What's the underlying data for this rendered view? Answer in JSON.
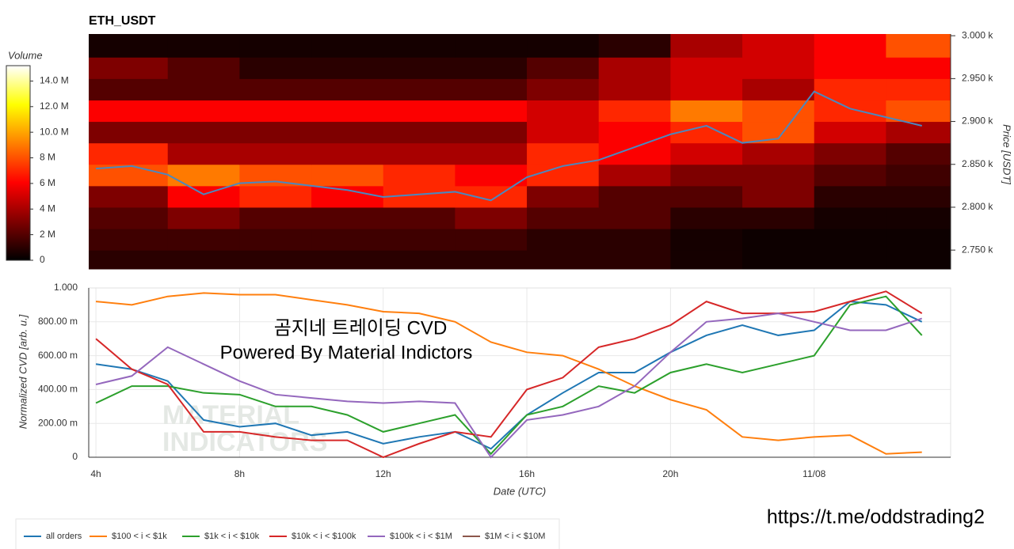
{
  "chart_data": [
    {
      "type": "heatmap",
      "title": "ETH_USDT",
      "colorbar_title": "Volume",
      "ylabel": "Price [USDT]",
      "xbins": [
        3.8,
        6,
        8,
        10,
        12,
        14,
        16,
        18,
        20,
        22,
        24,
        26,
        27.8
      ],
      "ybins": [
        2728,
        2750,
        2775,
        2800,
        2825,
        2850,
        2875,
        2900,
        2925,
        2950,
        2975,
        3002
      ],
      "z": [
        [
          1,
          1,
          1,
          1,
          1,
          1,
          1,
          1,
          0.5,
          0.3,
          0.3,
          0.3
        ],
        [
          1.5,
          1.5,
          1.5,
          1.5,
          1.5,
          1.5,
          1,
          1,
          0.5,
          0.3,
          0.3,
          0.3
        ],
        [
          2,
          3,
          2,
          2,
          2,
          3,
          2,
          2,
          1,
          1,
          0.5,
          0.5
        ],
        [
          3,
          6,
          7,
          6,
          7,
          7,
          3,
          2,
          2,
          3,
          1,
          1
        ],
        [
          8,
          9,
          8,
          8,
          7,
          6,
          7,
          4,
          3,
          3,
          2,
          1.5
        ],
        [
          7,
          4,
          4,
          4,
          4,
          4,
          7,
          6,
          5,
          4,
          3,
          2
        ],
        [
          3,
          3,
          3,
          3,
          3,
          3,
          5,
          6,
          7,
          8,
          5,
          4
        ],
        [
          6,
          6,
          6,
          6,
          6,
          6,
          5,
          7,
          9,
          8,
          7,
          8
        ],
        [
          2,
          2,
          2,
          2,
          2,
          2,
          3,
          4,
          5,
          4,
          7,
          7
        ],
        [
          3,
          2,
          1,
          1,
          1,
          1,
          2,
          4,
          5,
          5,
          6,
          6
        ],
        [
          0.5,
          0.5,
          0.5,
          0.5,
          0.5,
          0.5,
          0.5,
          1,
          4,
          5,
          6,
          8
        ]
      ],
      "zlim": [
        0,
        15.2
      ],
      "zticks": [
        0,
        {
          "value": 2,
          "label": "2 M"
        },
        {
          "value": 4,
          "label": "4 M"
        },
        {
          "value": 6,
          "label": "6 M"
        },
        {
          "value": 8,
          "label": "8 M"
        },
        {
          "value": 10,
          "label": "10.0 M"
        },
        {
          "value": 12,
          "label": "12.0 M"
        },
        {
          "value": 14,
          "label": "14.0 M"
        }
      ],
      "xlim": [
        3.8,
        27.8
      ],
      "ylim": [
        2728,
        3002
      ],
      "yticks": [
        {
          "value": 2750,
          "label": "2.750 k"
        },
        {
          "value": 2800,
          "label": "2.800 k"
        },
        {
          "value": 2850,
          "label": "2.850 k"
        },
        {
          "value": 2900,
          "label": "2.900 k"
        },
        {
          "value": 2950,
          "label": "2.950 k"
        },
        {
          "value": 3000,
          "label": "3.000 k"
        }
      ],
      "line": {
        "color": "#4a88c0",
        "x": [
          4,
          5,
          6,
          7,
          8,
          9,
          10,
          11,
          12,
          13,
          14,
          15,
          16,
          17,
          18,
          19,
          20,
          21,
          22,
          23,
          24,
          25,
          26,
          27
        ],
        "values": [
          2845,
          2848,
          2838,
          2815,
          2828,
          2830,
          2825,
          2820,
          2812,
          2815,
          2818,
          2808,
          2835,
          2848,
          2855,
          2870,
          2885,
          2895,
          2875,
          2880,
          2935,
          2915,
          2905,
          2895
        ]
      }
    },
    {
      "type": "line",
      "ylabel": "Normalized CVD [arb. u.]",
      "xlabel": "Date (UTC)",
      "annotations": [
        "곰지네 트레이딩 CVD",
        "Powered By Material Indictors",
        "https://t.me/oddstrading2"
      ],
      "watermark": [
        "MATERIAL",
        "INDICATORS"
      ],
      "xlim": [
        3.8,
        27.8
      ],
      "ylim": [
        0,
        1
      ],
      "xticks": [
        {
          "value": 4,
          "label": "4h"
        },
        {
          "value": 8,
          "label": "8h"
        },
        {
          "value": 12,
          "label": "12h"
        },
        {
          "value": 16,
          "label": "16h"
        },
        {
          "value": 20,
          "label": "20h"
        },
        {
          "value": 24,
          "label": "11/08"
        }
      ],
      "yticks": [
        0,
        {
          "value": 0.2,
          "label": "200.00 m"
        },
        {
          "value": 0.4,
          "label": "400.00 m"
        },
        {
          "value": 0.6,
          "label": "600.00 m"
        },
        {
          "value": 0.8,
          "label": "800.00 m"
        },
        {
          "value": 1,
          "label": "1.000"
        }
      ],
      "grid": true,
      "x": [
        4,
        5,
        6,
        7,
        8,
        9,
        10,
        11,
        12,
        13,
        14,
        15,
        16,
        17,
        18,
        19,
        20,
        21,
        22,
        23,
        24,
        25,
        26,
        27
      ],
      "series": [
        {
          "name": "all orders",
          "color": "#1f77b4",
          "values": [
            0.55,
            0.52,
            0.45,
            0.22,
            0.18,
            0.2,
            0.13,
            0.15,
            0.08,
            0.12,
            0.15,
            0.05,
            0.25,
            0.38,
            0.5,
            0.5,
            0.62,
            0.72,
            0.78,
            0.72,
            0.75,
            0.92,
            0.9,
            0.8
          ]
        },
        {
          "name": "$100 < i < $1k",
          "color": "#ff7f0e",
          "values": [
            0.92,
            0.9,
            0.95,
            0.97,
            0.96,
            0.96,
            0.93,
            0.9,
            0.86,
            0.85,
            0.8,
            0.68,
            0.62,
            0.6,
            0.52,
            0.42,
            0.34,
            0.28,
            0.12,
            0.1,
            0.12,
            0.13,
            0.02,
            0.03
          ]
        },
        {
          "name": "$1k < i < $10k",
          "color": "#2ca02c",
          "values": [
            0.32,
            0.42,
            0.42,
            0.38,
            0.37,
            0.3,
            0.3,
            0.25,
            0.15,
            0.2,
            0.25,
            0.02,
            0.25,
            0.3,
            0.42,
            0.38,
            0.5,
            0.55,
            0.5,
            0.55,
            0.6,
            0.9,
            0.95,
            0.72
          ]
        },
        {
          "name": "$10k < i < $100k",
          "color": "#d62728",
          "values": [
            0.7,
            0.52,
            0.43,
            0.15,
            0.15,
            0.12,
            0.1,
            0.1,
            0,
            0.08,
            0.15,
            0.12,
            0.4,
            0.47,
            0.65,
            0.7,
            0.78,
            0.92,
            0.85,
            0.85,
            0.86,
            0.92,
            0.98,
            0.85
          ]
        },
        {
          "name": "$100k < i < $1M",
          "color": "#9467bd",
          "values": [
            0.43,
            0.48,
            0.65,
            0.55,
            0.45,
            0.37,
            0.35,
            0.33,
            0.32,
            0.33,
            0.32,
            0,
            0.22,
            0.25,
            0.3,
            0.42,
            0.62,
            0.8,
            0.82,
            0.85,
            0.8,
            0.75,
            0.75,
            0.82
          ]
        },
        {
          "name": "$1M < i < $10M",
          "color": "#8c564b",
          "values": [
            null,
            null,
            null,
            null,
            null,
            null,
            null,
            null,
            null,
            null,
            null,
            null,
            null,
            null,
            null,
            null,
            null,
            null,
            null,
            null,
            null,
            null,
            null,
            null
          ]
        }
      ]
    }
  ]
}
